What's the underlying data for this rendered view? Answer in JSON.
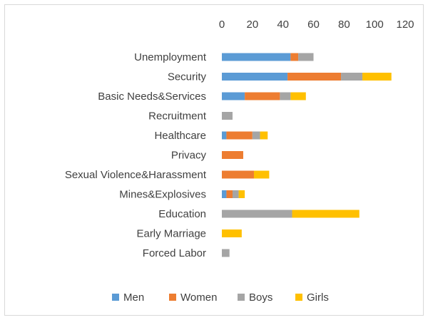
{
  "chart_data": {
    "type": "bar",
    "orientation": "horizontal",
    "stacked": true,
    "title": "",
    "xlabel": "",
    "ylabel": "",
    "xlim": [
      0,
      120
    ],
    "x_ticks": [
      0,
      20,
      40,
      60,
      80,
      100,
      120
    ],
    "x_axis_position": "top",
    "grid": false,
    "legend_position": "bottom",
    "categories": [
      "Unemployment",
      "Security",
      "Basic Needs&Services",
      "Recruitment",
      "Healthcare",
      "Privacy",
      "Sexual Violence&Harassment",
      "Mines&Explosives",
      "Education",
      "Early Marriage",
      "Forced Labor"
    ],
    "series": [
      {
        "name": "Men",
        "color": "#5B9BD5",
        "values": [
          45,
          43,
          15,
          0,
          3,
          0,
          0,
          3,
          0,
          0,
          0
        ]
      },
      {
        "name": "Women",
        "color": "#ED7D31",
        "values": [
          5,
          35,
          23,
          0,
          17,
          14,
          21,
          4,
          0,
          0,
          0
        ]
      },
      {
        "name": "Boys",
        "color": "#A5A5A5",
        "values": [
          10,
          14,
          7,
          7,
          5,
          0,
          0,
          4,
          46,
          0,
          5
        ]
      },
      {
        "name": "Girls",
        "color": "#FFC000",
        "values": [
          0,
          19,
          10,
          0,
          5,
          0,
          10,
          4,
          44,
          13,
          0
        ]
      }
    ]
  }
}
